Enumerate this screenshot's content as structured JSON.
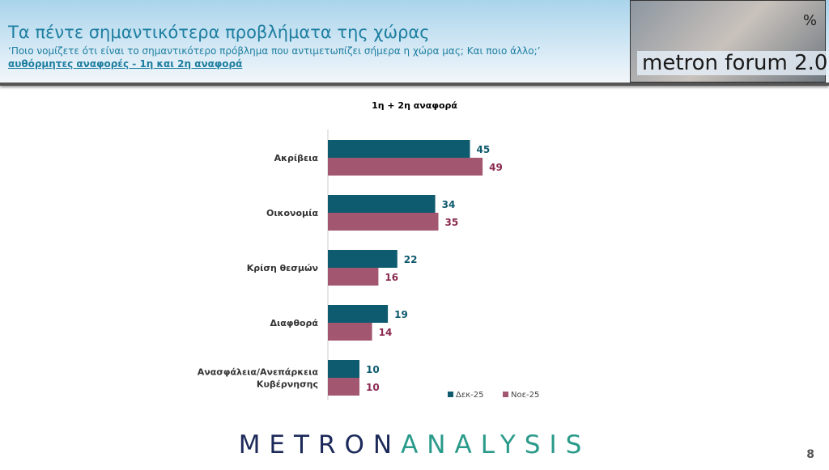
{
  "header": {
    "title": "Τα πέντε σημαντικότερα προβλήματα της χώρας",
    "question": "‘Ποιο νομίζετε ότι είναι το σημαντικότερο πρόβλημα που αντιμετωπίζει σήμερα η χώρα μας; Και ποιο άλλο;’",
    "subtitle": "αυθόρμητες αναφορές - 1η και 2η αναφορά"
  },
  "logo": {
    "text": "metron forum 2.0",
    "symbol": "%"
  },
  "chart_data": {
    "type": "bar",
    "orientation": "horizontal",
    "title": "1η + 2η αναφορά",
    "categories": [
      "Ακρίβεια",
      "Οικονομία",
      "Κρίση θεσμών",
      "Διαφθορά",
      "Ανασφάλεια/Ανεπάρκεια Κυβέρνησης"
    ],
    "series": [
      {
        "name": "Δεκ-25",
        "values": [
          45,
          34,
          22,
          19,
          10
        ],
        "color": "#0e5a6e"
      },
      {
        "name": "Νοε-25",
        "values": [
          49,
          35,
          16,
          14,
          10
        ],
        "color": "#a2566f"
      }
    ],
    "legend": "bottom-right",
    "grid": false
  },
  "footer": {
    "brand_a": "METRON",
    "brand_b": "ANALYSIS",
    "page": "8"
  }
}
